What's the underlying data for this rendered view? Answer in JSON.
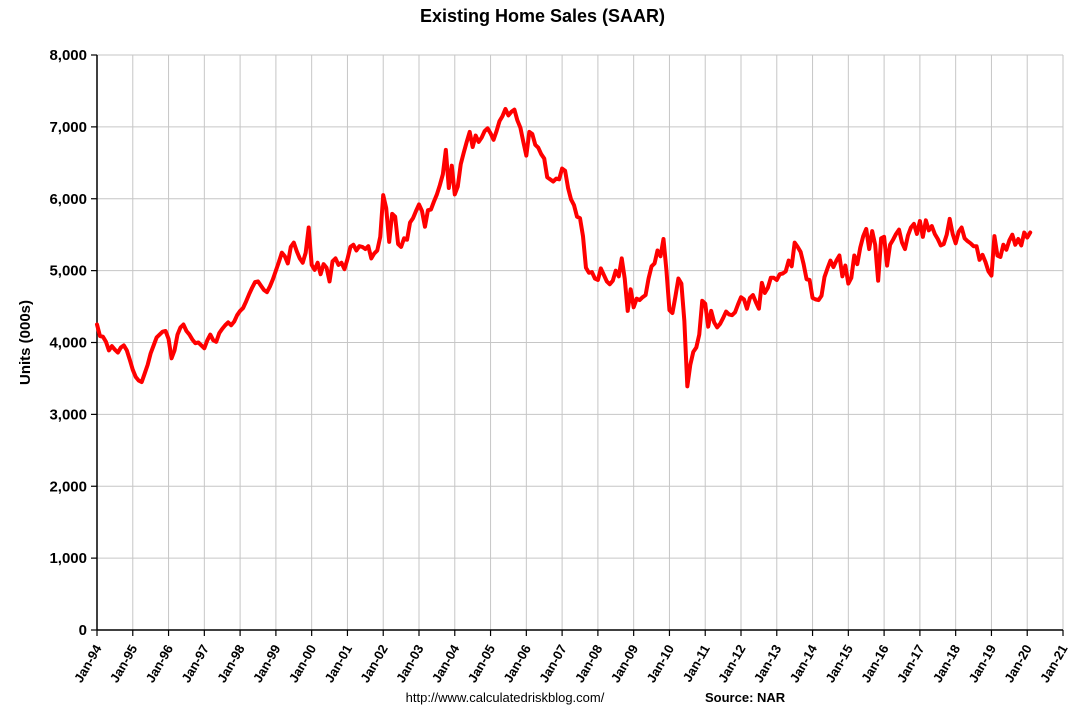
{
  "footer": {
    "url": "http://www.calculatedriskblog.com/",
    "source_label": "Source: NAR"
  },
  "chart_data": {
    "type": "line",
    "title": "Existing Home Sales (SAAR)",
    "xlabel": "",
    "ylabel": "Units (000s)",
    "ylim": [
      0,
      8000
    ],
    "ytick_step": 1000,
    "ytick_labels": [
      "0",
      "1,000",
      "2,000",
      "3,000",
      "4,000",
      "5,000",
      "6,000",
      "7,000",
      "8,000"
    ],
    "xtick_labels": [
      "Jan-94",
      "Jan-95",
      "Jan-96",
      "Jan-97",
      "Jan-98",
      "Jan-99",
      "Jan-00",
      "Jan-01",
      "Jan-02",
      "Jan-03",
      "Jan-04",
      "Jan-05",
      "Jan-06",
      "Jan-07",
      "Jan-08",
      "Jan-09",
      "Jan-10",
      "Jan-11",
      "Jan-12",
      "Jan-13",
      "Jan-14",
      "Jan-15",
      "Jan-16",
      "Jan-17",
      "Jan-18",
      "Jan-19",
      "Jan-20",
      "Jan-21"
    ],
    "grid": true,
    "grid_color": "#c6c6c6",
    "line_color": "#ff0000",
    "line_width": 4,
    "start_month": "Jan-94",
    "frequency": "monthly",
    "series": [
      {
        "name": "Existing Home Sales (000s, SAAR)",
        "values": [
          4250,
          4090,
          4080,
          4010,
          3890,
          3950,
          3900,
          3860,
          3930,
          3960,
          3890,
          3760,
          3620,
          3520,
          3470,
          3450,
          3570,
          3690,
          3850,
          3960,
          4070,
          4110,
          4150,
          4160,
          4050,
          3780,
          3890,
          4110,
          4210,
          4250,
          4160,
          4110,
          4040,
          3990,
          4000,
          3960,
          3920,
          4030,
          4110,
          4030,
          4010,
          4130,
          4190,
          4240,
          4280,
          4240,
          4290,
          4380,
          4440,
          4480,
          4570,
          4670,
          4760,
          4840,
          4850,
          4790,
          4730,
          4700,
          4780,
          4880,
          5000,
          5120,
          5250,
          5200,
          5100,
          5330,
          5390,
          5270,
          5170,
          5110,
          5250,
          5600,
          5080,
          5010,
          5110,
          4950,
          5090,
          5040,
          4850,
          5130,
          5170,
          5080,
          5110,
          5020,
          5160,
          5330,
          5360,
          5280,
          5340,
          5330,
          5300,
          5340,
          5170,
          5240,
          5280,
          5470,
          6050,
          5870,
          5400,
          5790,
          5750,
          5370,
          5330,
          5450,
          5430,
          5670,
          5730,
          5830,
          5920,
          5830,
          5610,
          5840,
          5850,
          5960,
          6060,
          6190,
          6340,
          6680,
          6150,
          6460,
          6060,
          6170,
          6480,
          6640,
          6790,
          6930,
          6720,
          6880,
          6790,
          6850,
          6940,
          6980,
          6910,
          6820,
          6940,
          7080,
          7150,
          7250,
          7160,
          7210,
          7240,
          7090,
          6990,
          6790,
          6600,
          6930,
          6900,
          6750,
          6710,
          6620,
          6560,
          6300,
          6270,
          6240,
          6280,
          6270,
          6420,
          6390,
          6150,
          5990,
          5910,
          5750,
          5730,
          5480,
          5040,
          4970,
          4980,
          4890,
          4870,
          5030,
          4940,
          4850,
          4810,
          4860,
          5000,
          4920,
          5170,
          4890,
          4440,
          4740,
          4490,
          4610,
          4590,
          4630,
          4660,
          4890,
          5060,
          5100,
          5280,
          5200,
          5440,
          5000,
          4450,
          4410,
          4640,
          4890,
          4820,
          4300,
          3390,
          3690,
          3870,
          3930,
          4110,
          4580,
          4540,
          4220,
          4440,
          4280,
          4210,
          4260,
          4340,
          4430,
          4390,
          4380,
          4420,
          4530,
          4630,
          4600,
          4470,
          4620,
          4660,
          4560,
          4470,
          4830,
          4690,
          4760,
          4900,
          4900,
          4870,
          4950,
          4960,
          4990,
          5140,
          5060,
          5390,
          5330,
          5260,
          5090,
          4880,
          4870,
          4620,
          4600,
          4590,
          4650,
          4910,
          5030,
          5140,
          5050,
          5140,
          5210,
          4920,
          5070,
          4820,
          4900,
          5210,
          5090,
          5320,
          5480,
          5580,
          5300,
          5550,
          5360,
          4860,
          5450,
          5470,
          5070,
          5360,
          5430,
          5510,
          5570,
          5390,
          5300,
          5490,
          5600,
          5650,
          5510,
          5690,
          5470,
          5700,
          5560,
          5620,
          5510,
          5440,
          5350,
          5370,
          5500,
          5720,
          5510,
          5380,
          5540,
          5600,
          5450,
          5410,
          5380,
          5340,
          5340,
          5150,
          5220,
          5120,
          4990,
          4930,
          5480,
          5210,
          5190,
          5360,
          5290,
          5420,
          5500,
          5360,
          5440,
          5350,
          5530,
          5460,
          5530
        ]
      }
    ]
  }
}
